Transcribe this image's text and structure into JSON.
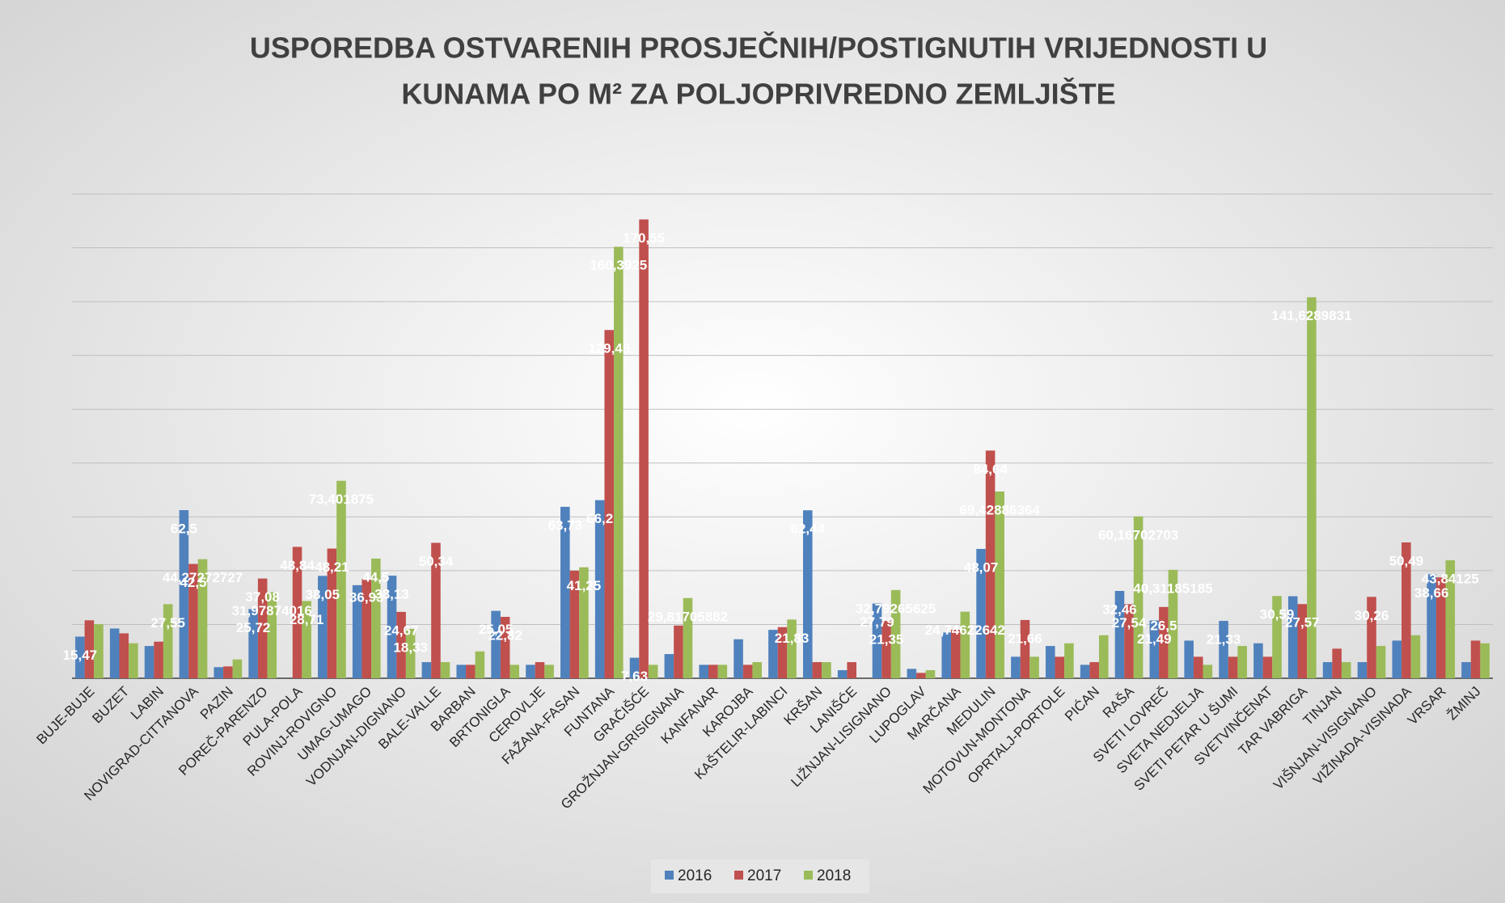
{
  "chart_data": {
    "type": "bar",
    "title": "USPOREDBA OSTVARENIH PROSJEČNIH/POSTIGNUTIH VRIJEDNOSTI U KUNAMA PO M² ZA POLJOPRIVREDNO  ZEMLJIŠTE",
    "categories": [
      "BUJE-BUJE",
      "BUZET",
      "LABIN",
      "NOVIGRAD-CITTANOVA",
      "PAZIN",
      "POREČ-PARENZO",
      "PULA-POLA",
      "ROVINJ-ROVIGNO",
      "UMAG-UMAGO",
      "VODNJAN-DIGNANO",
      "BALE-VALLE",
      "BARBAN",
      "BRTONIGLA",
      "CEROVLJE",
      "FAŽANA-FASAN",
      "FUNTANA",
      "GRAČIŠĆE",
      "GROŽNJAN-GRISIGNANA",
      "KANFANAR",
      "KAROJBA",
      "KAŠTELIR-LABINCI",
      "KRŠAN",
      "LANIŠĆE",
      "LIŽNJAN-LISIGNANO",
      "LUPOGLAV",
      "MARČANA",
      "MEDULIN",
      "MOTOVUN-MONTONA",
      "OPRTALJ-PORTOLE",
      "PIĆAN",
      "RAŠA",
      "SVETI LOVREČ",
      "SVETA NEDJELJA",
      "SVETI PETAR U ŠUMI",
      "SVETVINČENAT",
      "TAR VABRIGA",
      "TINJAN",
      "VIŠNJAN-VISIGNANO",
      "VIŽINADA-VISINADA",
      "VRSAR",
      "ŽMINJ"
    ],
    "series": [
      {
        "name": "2016",
        "color": "#4f81bd",
        "values": [
          15.47,
          18.5,
          12,
          62.5,
          4.13,
          25.72,
          0,
          38.05,
          34.6,
          38.13,
          6,
          5,
          25.05,
          5,
          63.73,
          66.2,
          7.63,
          9,
          5,
          14.5,
          18,
          62.44,
          3,
          27.79,
          3.5,
          17,
          48.07,
          8,
          12,
          5,
          32.46,
          21.49,
          14,
          21.33,
          13,
          30.5,
          6,
          6,
          14,
          38.66,
          6
        ],
        "value_labels": [
          "15,47",
          null,
          null,
          "62,5",
          null,
          "25,72",
          null,
          "38,05",
          null,
          "38,13",
          null,
          null,
          "25,05",
          null,
          "63,73",
          "66,2",
          "7,63",
          null,
          null,
          null,
          null,
          "62,44",
          null,
          "27,79",
          null,
          null,
          "48,07",
          null,
          null,
          null,
          "32,46",
          "21,49",
          null,
          "21,33",
          null,
          null,
          null,
          null,
          null,
          "38,66",
          null
        ]
      },
      {
        "name": "2017",
        "color": "#c0504d",
        "values": [
          21.55,
          16.7,
          13.61,
          42.5,
          4.4,
          37.08,
          48.84,
          48.21,
          36.93,
          24.67,
          50.34,
          5,
          22.82,
          6,
          40,
          129.45,
          170.55,
          19.6,
          5,
          5,
          19,
          6,
          6,
          21.35,
          2,
          18,
          84.64,
          21.66,
          8,
          6,
          27.54,
          26.5,
          8,
          8,
          8,
          27.57,
          11,
          30.26,
          50.49,
          37.5,
          14
        ],
        "value_labels": [
          null,
          null,
          null,
          "42,5",
          null,
          "37,08",
          "48,84",
          "48,21",
          "36,93",
          "24,67",
          "50,34",
          null,
          "22,82",
          null,
          null,
          "129,45",
          "170,55",
          null,
          null,
          null,
          null,
          null,
          null,
          "21,35",
          null,
          null,
          "84,64",
          "21,66",
          null,
          null,
          "27,54",
          "26,5",
          null,
          null,
          null,
          "27,57",
          null,
          "30,26",
          "50,49",
          null,
          null
        ]
      },
      {
        "name": "2018",
        "color": "#9bbb59",
        "values": [
          20.1,
          13,
          27.55,
          44.27272727,
          7,
          31.97874016,
          28.71,
          73.401875,
          44.5,
          18.33,
          6,
          10,
          5,
          5,
          41.25,
          160.3925,
          5,
          29.81705882,
          5,
          6,
          21.83,
          6,
          0,
          32.79265625,
          3,
          24.74622642,
          69.42886364,
          8,
          13,
          16,
          60.16702703,
          40.31185185,
          5,
          12,
          30.59,
          141.6289831,
          6,
          12,
          16,
          43.84125,
          13
        ],
        "value_labels": [
          null,
          null,
          "27,55",
          "44,27272727",
          null,
          "31,97874016",
          "28,71",
          "73,401875",
          "44,5",
          "18,33",
          null,
          null,
          null,
          null,
          "41,25",
          "160,3925",
          null,
          "29,81705882",
          null,
          null,
          "21,83",
          null,
          null,
          "32,79265625",
          null,
          "24,74622642",
          "69,42886364",
          null,
          null,
          null,
          "60,16702703",
          "40,31185185",
          null,
          null,
          "30,59",
          "141,6289831",
          null,
          null,
          null,
          "43,84125",
          null
        ]
      }
    ],
    "ylim": [
      0,
      180
    ],
    "yticks": [
      0,
      20,
      40,
      60,
      80,
      100,
      120,
      140,
      160,
      180
    ],
    "grid": true,
    "legend": "bottom"
  }
}
